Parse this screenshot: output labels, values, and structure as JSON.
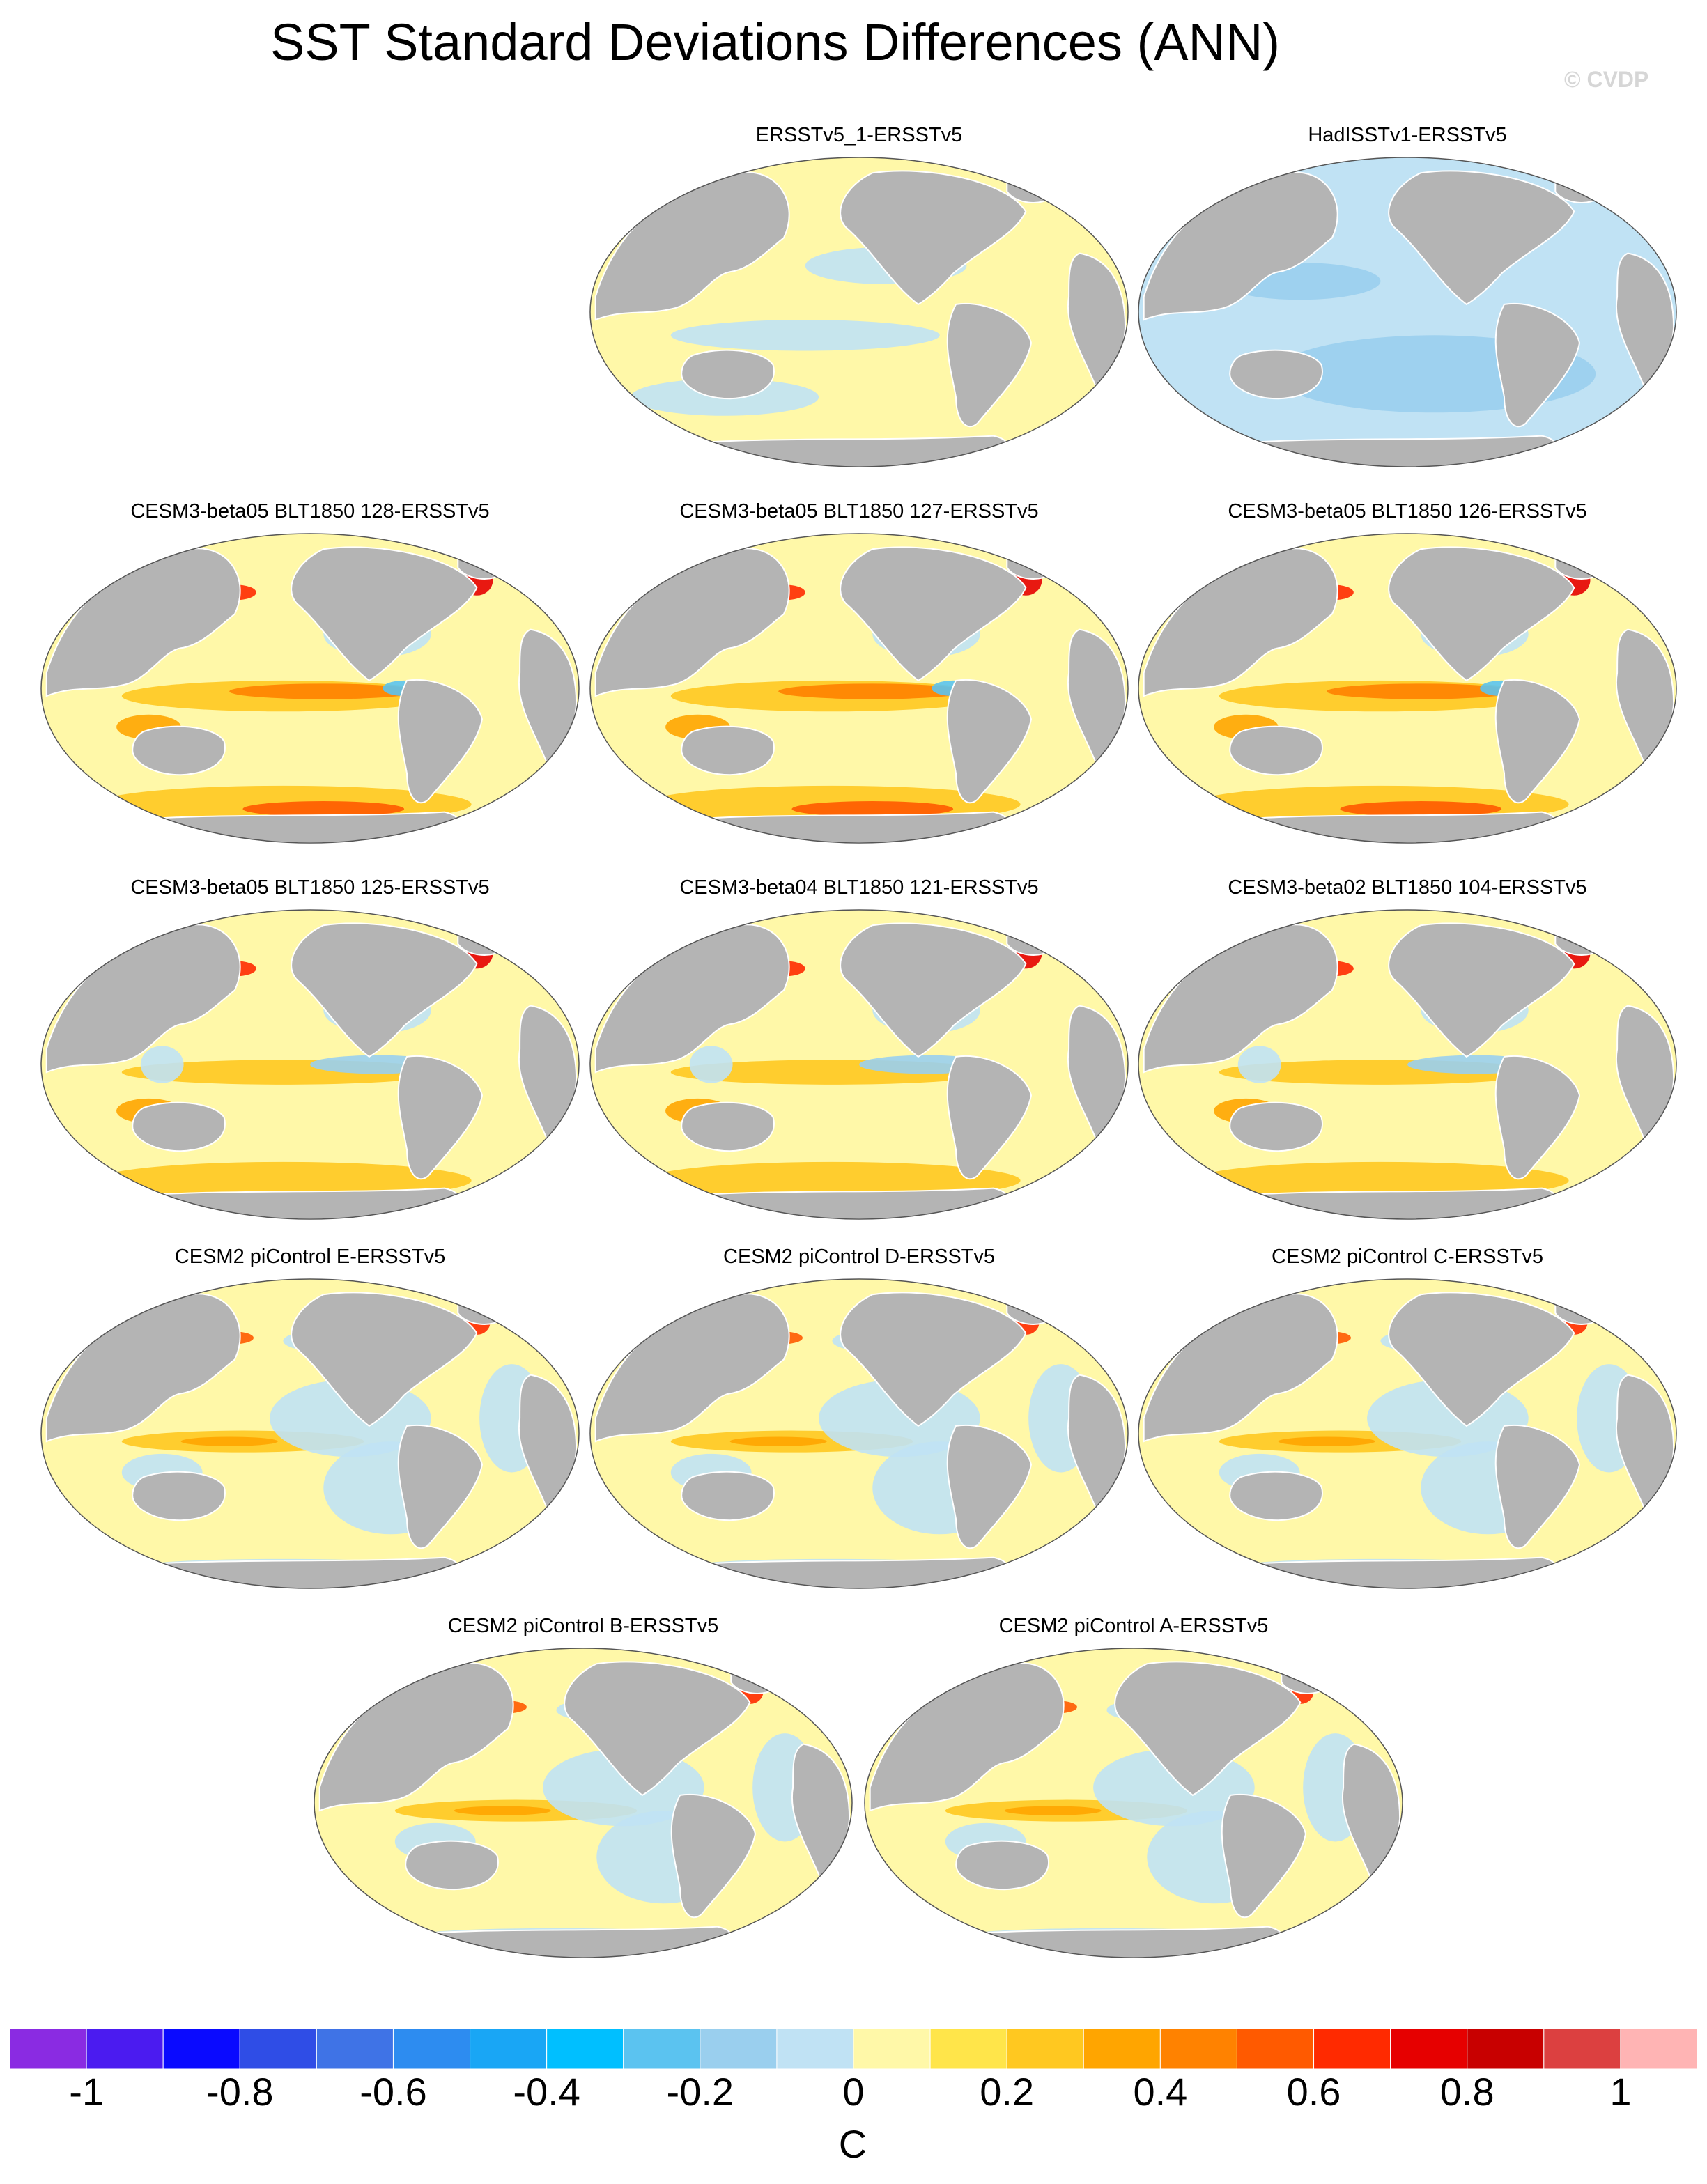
{
  "title": "SST Standard Deviations Differences (ANN)",
  "watermark": "© CVDP",
  "colors": {
    "land": "#b4b4b4",
    "coast": "#ffffff",
    "ocean_outline": "#555555"
  },
  "panels": [
    {
      "label": "ERSSTv5_1-ERSSTv5",
      "pattern": "neutral-warm"
    },
    {
      "label": "HadISSTv1-ERSSTv5",
      "pattern": "cool"
    },
    {
      "label": "CESM3-beta05 BLT1850 128-ERSSTv5",
      "pattern": "strong-warm"
    },
    {
      "label": "CESM3-beta05 BLT1850 127-ERSSTv5",
      "pattern": "strong-warm"
    },
    {
      "label": "CESM3-beta05 BLT1850 126-ERSSTv5",
      "pattern": "strong-warm"
    },
    {
      "label": "CESM3-beta05 BLT1850 125-ERSSTv5",
      "pattern": "warm"
    },
    {
      "label": "CESM3-beta04 BLT1850 121-ERSSTv5",
      "pattern": "warm"
    },
    {
      "label": "CESM3-beta02 BLT1850 104-ERSSTv5",
      "pattern": "warm"
    },
    {
      "label": "CESM2 piControl E-ERSSTv5",
      "pattern": "mixed"
    },
    {
      "label": "CESM2 piControl D-ERSSTv5",
      "pattern": "mixed"
    },
    {
      "label": "CESM2 piControl C-ERSSTv5",
      "pattern": "mixed"
    },
    {
      "label": "CESM2 piControl B-ERSSTv5",
      "pattern": "mixed"
    },
    {
      "label": "CESM2 piControl A-ERSSTv5",
      "pattern": "mixed"
    }
  ],
  "colorbar": {
    "colors": [
      "#8a2be2",
      "#4b1bf0",
      "#0a0aff",
      "#2f4de6",
      "#3f73e6",
      "#2d8cf0",
      "#19a6f5",
      "#00bfff",
      "#5bc3f0",
      "#9acfee",
      "#c0e2f4",
      "#fff8a8",
      "#ffe54a",
      "#ffc820",
      "#ffa500",
      "#ff8200",
      "#ff5a00",
      "#ff2a00",
      "#e60000",
      "#c80000",
      "#dc4040",
      "#ffb4b4"
    ],
    "labels": [
      "-1",
      "-0.8",
      "-0.6",
      "-0.4",
      "-0.2",
      "0",
      "0.2",
      "0.4",
      "0.6",
      "0.8",
      "1"
    ],
    "label_min": -1,
    "label_max": 1,
    "unit": "C"
  }
}
